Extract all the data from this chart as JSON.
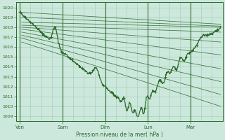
{
  "title": "Pression niveau de la mer( hPa )",
  "ylim": [
    1008.5,
    1020.5
  ],
  "yticks": [
    1009,
    1010,
    1011,
    1012,
    1013,
    1014,
    1015,
    1016,
    1017,
    1018,
    1019,
    1020
  ],
  "x_day_labels": [
    "Ven",
    "Sam",
    "Dim",
    "Lun",
    "Mar"
  ],
  "x_day_positions": [
    0,
    24,
    48,
    72,
    96
  ],
  "xlim": [
    -2,
    114
  ],
  "bg_color": "#cce8dc",
  "grid_color": "#aacfbc",
  "line_color": "#2d6a2d",
  "font_color": "#2d6a2d",
  "border_color": "#2d6a2d",
  "forecast_starts_x": [
    1,
    1,
    1,
    1,
    1,
    1,
    1,
    1,
    1,
    1
  ],
  "forecast_starts_y": [
    1019.5,
    1019.0,
    1018.5,
    1018.2,
    1018.0,
    1017.8,
    1017.5,
    1017.2,
    1016.9,
    1016.5
  ],
  "forecast_ends_x": [
    113,
    113,
    113,
    113,
    113,
    113,
    113,
    113,
    113,
    113
  ],
  "forecast_ends_y": [
    1018.3,
    1018.1,
    1018.0,
    1017.5,
    1016.5,
    1015.2,
    1013.8,
    1012.5,
    1011.2,
    1010.0
  ]
}
